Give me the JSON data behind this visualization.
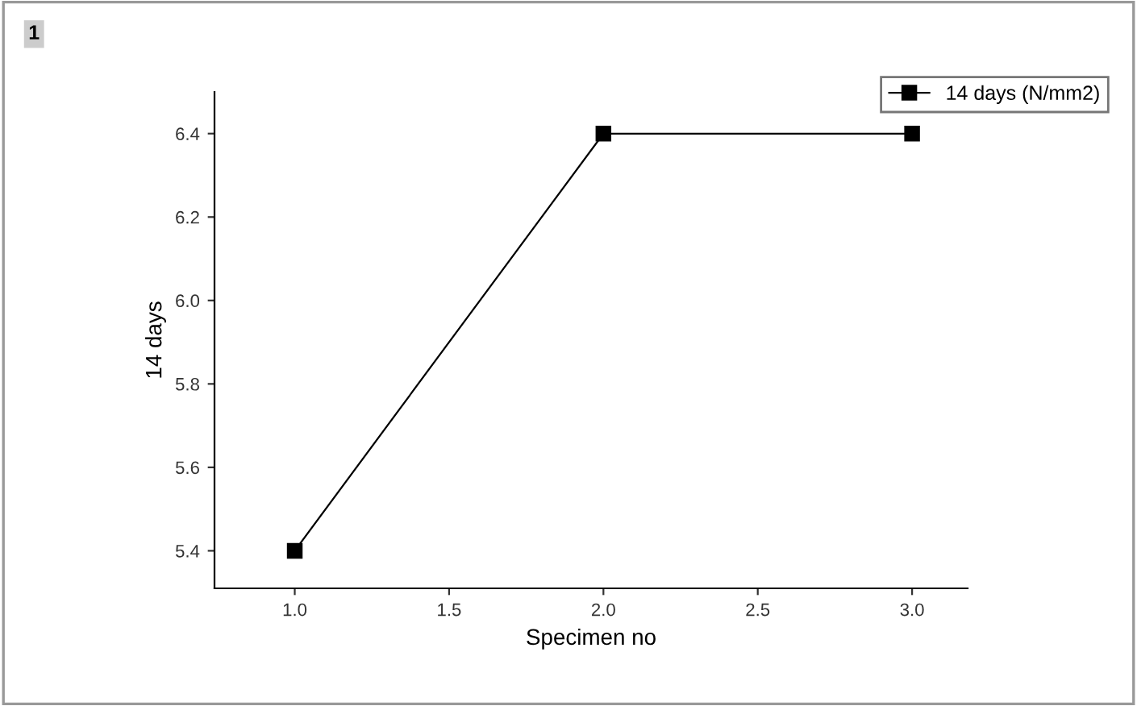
{
  "chart_data": {
    "type": "line",
    "xlabel": "Specimen no",
    "ylabel": "14 days",
    "x": [
      1.0,
      2.0,
      3.0
    ],
    "series": [
      {
        "name": "14 days (N/mm2)",
        "color": "#000000",
        "values": [
          5.4,
          6.4,
          6.4
        ]
      }
    ],
    "xlim": [
      0.74,
      3.18
    ],
    "ylim": [
      5.31,
      6.5
    ],
    "xticks": [
      {
        "value": 1.0,
        "label": "1.0"
      },
      1.5,
      {
        "value": 2.0,
        "label": "2.0"
      },
      2.5,
      {
        "value": 3.0,
        "label": "3.0"
      }
    ],
    "yticks": [
      5.4,
      5.6,
      5.8,
      {
        "value": 6.0,
        "label": "6.0"
      },
      6.2,
      6.4
    ],
    "marker": "square",
    "line_style": "solid",
    "legend": "top right",
    "grid": false,
    "annotations": [
      "1"
    ]
  }
}
